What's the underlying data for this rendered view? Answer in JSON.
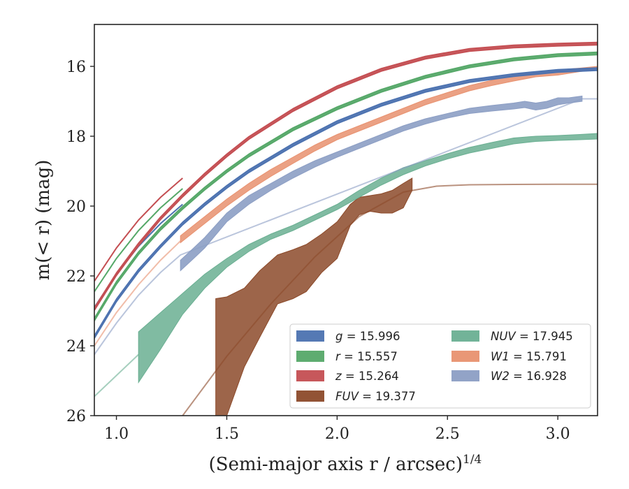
{
  "chart_data": {
    "type": "line",
    "xlabel": "(Semi-major axis r / arcsec)",
    "xlabel_sup": "1/4",
    "ylabel": "m(< r) (mag)",
    "xlim": [
      0.9,
      3.18
    ],
    "ylim": [
      26,
      14.8
    ],
    "y_inverted": true,
    "xticks": [
      1.0,
      1.5,
      2.0,
      2.5,
      3.0
    ],
    "xtick_labels": [
      "1.0",
      "1.5",
      "2.0",
      "2.5",
      "3.0"
    ],
    "yticks": [
      16,
      18,
      20,
      22,
      24,
      26
    ],
    "ytick_labels": [
      "16",
      "18",
      "20",
      "22",
      "24",
      "26"
    ],
    "grid": false,
    "legend_position": "lower-right",
    "legend_columns": 2,
    "series": [
      {
        "name": "g",
        "legend": "g = 15.996",
        "color": "#4c72b0",
        "band_width": 0.08,
        "x": [
          0.9,
          1.0,
          1.1,
          1.2,
          1.3,
          1.4,
          1.5,
          1.6,
          1.8,
          2.0,
          2.2,
          2.4,
          2.6,
          2.8,
          3.0,
          3.18
        ],
        "y": [
          23.75,
          22.7,
          21.85,
          21.15,
          20.5,
          19.95,
          19.45,
          19.0,
          18.25,
          17.6,
          17.1,
          16.7,
          16.42,
          16.25,
          16.13,
          16.08
        ],
        "outer_x": [
          0.9,
          1.0,
          1.1,
          1.2,
          1.3
        ],
        "outer_y": [
          22.9,
          21.95,
          21.15,
          20.5,
          19.95
        ]
      },
      {
        "name": "r",
        "legend": "r = 15.557",
        "color": "#55a868",
        "band_width": 0.08,
        "x": [
          0.9,
          1.0,
          1.1,
          1.2,
          1.3,
          1.4,
          1.5,
          1.6,
          1.8,
          2.0,
          2.2,
          2.4,
          2.6,
          2.8,
          3.0,
          3.18
        ],
        "y": [
          23.25,
          22.2,
          21.35,
          20.65,
          20.05,
          19.5,
          19.0,
          18.55,
          17.8,
          17.2,
          16.7,
          16.3,
          16.0,
          15.8,
          15.68,
          15.63
        ],
        "outer_x": [
          0.9,
          1.0,
          1.1,
          1.2,
          1.3
        ],
        "outer_y": [
          22.45,
          21.5,
          20.7,
          20.05,
          19.5
        ]
      },
      {
        "name": "z",
        "legend": "z = 15.264",
        "color": "#c44e52",
        "band_width": 0.08,
        "x": [
          0.9,
          1.0,
          1.1,
          1.2,
          1.3,
          1.4,
          1.5,
          1.6,
          1.8,
          2.0,
          2.2,
          2.4,
          2.6,
          2.8,
          3.0,
          3.18
        ],
        "y": [
          22.95,
          21.95,
          21.1,
          20.35,
          19.7,
          19.1,
          18.55,
          18.05,
          17.25,
          16.6,
          16.1,
          15.75,
          15.53,
          15.43,
          15.38,
          15.35
        ],
        "outer_x": [
          0.9,
          1.0,
          1.1,
          1.2,
          1.3
        ],
        "outer_y": [
          22.15,
          21.2,
          20.4,
          19.75,
          19.2
        ]
      },
      {
        "name": "FUV",
        "legend": "FUV = 19.377",
        "color": "#8c4a2a",
        "fill_opacity": 0.85,
        "band_x": [
          1.45,
          1.5,
          1.58,
          1.65,
          1.73,
          1.8,
          1.86,
          1.93,
          2.0,
          2.06,
          2.1,
          2.15,
          2.2,
          2.25,
          2.3,
          2.34
        ],
        "band_lo": [
          22.65,
          22.6,
          22.35,
          21.85,
          21.4,
          21.25,
          21.1,
          20.8,
          20.45,
          19.95,
          19.75,
          19.7,
          19.65,
          19.55,
          19.35,
          19.2
        ],
        "band_hi": [
          26.0,
          26.0,
          24.6,
          23.75,
          22.8,
          22.65,
          22.45,
          21.9,
          21.5,
          20.55,
          20.25,
          20.15,
          20.2,
          20.2,
          20.05,
          19.55
        ],
        "model_x": [
          1.3,
          1.5,
          1.7,
          1.9,
          2.1,
          2.3,
          2.45,
          2.6,
          2.8,
          3.0,
          3.18
        ],
        "model_y": [
          26.0,
          24.3,
          22.8,
          21.45,
          20.3,
          19.6,
          19.43,
          19.39,
          19.38,
          19.377,
          19.377
        ]
      },
      {
        "name": "NUV",
        "legend": "NUV = 17.945",
        "color": "#6aaf92",
        "fill_opacity": 0.85,
        "band_x": [
          1.1,
          1.2,
          1.3,
          1.4,
          1.5,
          1.6,
          1.7,
          1.8,
          1.9,
          2.0,
          2.1,
          2.2,
          2.3,
          2.4,
          2.5,
          2.6,
          2.7,
          2.8,
          2.9,
          3.0,
          3.1,
          3.18
        ],
        "band_lo": [
          23.6,
          23.05,
          22.5,
          21.95,
          21.5,
          21.1,
          20.8,
          20.55,
          20.25,
          19.95,
          19.55,
          19.2,
          18.9,
          18.7,
          18.5,
          18.32,
          18.18,
          18.05,
          18.0,
          17.98,
          17.95,
          17.92
        ],
        "band_hi": [
          25.05,
          24.1,
          23.1,
          22.35,
          21.75,
          21.3,
          20.95,
          20.7,
          20.4,
          20.1,
          19.75,
          19.4,
          19.1,
          18.85,
          18.65,
          18.48,
          18.35,
          18.22,
          18.15,
          18.12,
          18.1,
          18.08
        ],
        "model_x": [
          0.9,
          1.0,
          1.1
        ],
        "model_y": [
          25.45,
          24.85,
          24.25
        ]
      },
      {
        "name": "W1",
        "legend": "W1 = 15.791",
        "color": "#e8916f",
        "fill_opacity": 0.85,
        "band_x": [
          1.29,
          1.35,
          1.4,
          1.5,
          1.6,
          1.7,
          1.8,
          1.9,
          2.0,
          2.1,
          2.2,
          2.3,
          2.4,
          2.5,
          2.6,
          2.7,
          2.8,
          2.9,
          3.0,
          3.1,
          3.18
        ],
        "band_lo": [
          20.85,
          20.55,
          20.3,
          19.8,
          19.35,
          18.95,
          18.6,
          18.25,
          17.95,
          17.7,
          17.45,
          17.2,
          16.95,
          16.75,
          16.55,
          16.4,
          16.25,
          16.15,
          16.1,
          16.05,
          16.0
        ],
        "band_hi": [
          21.05,
          20.75,
          20.5,
          20.0,
          19.55,
          19.15,
          18.78,
          18.42,
          18.1,
          17.85,
          17.6,
          17.35,
          17.1,
          16.9,
          16.7,
          16.55,
          16.42,
          16.3,
          16.25,
          16.15,
          16.08
        ],
        "model_x": [
          0.9,
          1.0,
          1.1,
          1.2,
          1.29
        ],
        "model_y": [
          24.0,
          23.05,
          22.25,
          21.55,
          21.0
        ]
      },
      {
        "name": "W2",
        "legend": "W2 = 16.928",
        "color": "#8c9ec4",
        "fill_opacity": 0.9,
        "band_x": [
          1.29,
          1.35,
          1.4,
          1.5,
          1.6,
          1.7,
          1.8,
          1.9,
          2.0,
          2.1,
          2.2,
          2.3,
          2.4,
          2.5,
          2.6,
          2.7,
          2.8,
          2.85,
          2.9,
          2.95,
          3.0,
          3.05,
          3.11
        ],
        "band_lo": [
          21.55,
          21.2,
          20.9,
          20.2,
          19.7,
          19.35,
          19.0,
          18.7,
          18.45,
          18.2,
          17.95,
          17.7,
          17.5,
          17.35,
          17.2,
          17.12,
          17.05,
          17.0,
          17.05,
          17.0,
          16.9,
          16.9,
          16.85
        ],
        "band_hi": [
          21.85,
          21.5,
          21.2,
          20.45,
          19.95,
          19.55,
          19.2,
          18.88,
          18.6,
          18.35,
          18.1,
          17.85,
          17.65,
          17.48,
          17.35,
          17.28,
          17.22,
          17.18,
          17.25,
          17.2,
          17.1,
          17.05,
          17.0
        ],
        "model_x": [
          0.9,
          1.0,
          1.1,
          1.2,
          1.29,
          3.11,
          3.18
        ],
        "model_y": [
          24.25,
          23.35,
          22.55,
          21.9,
          21.4,
          16.93,
          16.93
        ]
      }
    ]
  }
}
